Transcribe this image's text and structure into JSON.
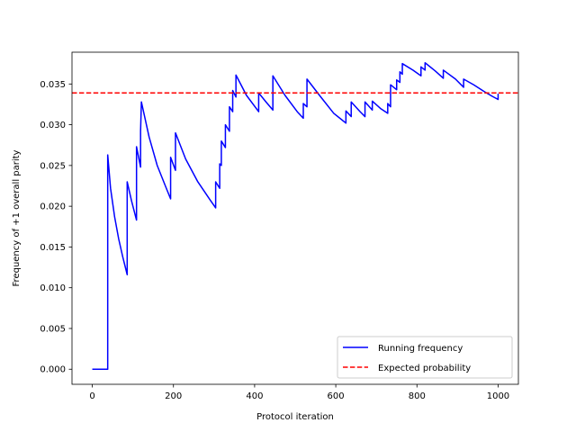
{
  "chart_data": {
    "type": "line",
    "title": "",
    "xlabel": "Protocol iteration",
    "ylabel": "Frequency of +1 overall parity",
    "xlim": [
      -50,
      1050
    ],
    "ylim": [
      -0.00185,
      0.0389
    ],
    "xticks": [
      0,
      200,
      400,
      600,
      800,
      1000
    ],
    "yticks": [
      0.0,
      0.005,
      0.01,
      0.015,
      0.02,
      0.025,
      0.03,
      0.035
    ],
    "ytick_labels": [
      "0.000",
      "0.005",
      "0.010",
      "0.015",
      "0.020",
      "0.025",
      "0.030",
      "0.035"
    ],
    "xtick_labels": [
      "0",
      "200",
      "400",
      "600",
      "800",
      "1000"
    ],
    "grid": false,
    "legend_position": "lower-right",
    "series": [
      {
        "name": "Running frequency",
        "color": "#0000ff",
        "style": "solid",
        "points": [
          [
            0,
            0.0
          ],
          [
            38,
            0.0
          ],
          [
            38,
            0.0263
          ],
          [
            45,
            0.0222
          ],
          [
            55,
            0.0187
          ],
          [
            65,
            0.016
          ],
          [
            75,
            0.0138
          ],
          [
            86,
            0.0116
          ],
          [
            86,
            0.023
          ],
          [
            97,
            0.0206
          ],
          [
            109,
            0.0183
          ],
          [
            109,
            0.0273
          ],
          [
            119,
            0.0248
          ],
          [
            119,
            0.0292
          ],
          [
            121,
            0.0328
          ],
          [
            140,
            0.0285
          ],
          [
            160,
            0.025
          ],
          [
            180,
            0.0225
          ],
          [
            193,
            0.0209
          ],
          [
            193,
            0.026
          ],
          [
            205,
            0.0244
          ],
          [
            205,
            0.029
          ],
          [
            230,
            0.0258
          ],
          [
            260,
            0.023
          ],
          [
            290,
            0.0208
          ],
          [
            304,
            0.0198
          ],
          [
            304,
            0.023
          ],
          [
            314,
            0.0222
          ],
          [
            314,
            0.0252
          ],
          [
            318,
            0.025
          ],
          [
            318,
            0.028
          ],
          [
            328,
            0.0272
          ],
          [
            328,
            0.03
          ],
          [
            338,
            0.0292
          ],
          [
            338,
            0.0322
          ],
          [
            346,
            0.0316
          ],
          [
            346,
            0.0342
          ],
          [
            354,
            0.0334
          ],
          [
            354,
            0.0361
          ],
          [
            380,
            0.0336
          ],
          [
            410,
            0.0316
          ],
          [
            410,
            0.0339
          ],
          [
            428,
            0.0328
          ],
          [
            445,
            0.0318
          ],
          [
            445,
            0.036
          ],
          [
            475,
            0.0336
          ],
          [
            505,
            0.0316
          ],
          [
            520,
            0.0308
          ],
          [
            520,
            0.0326
          ],
          [
            529,
            0.0322
          ],
          [
            529,
            0.0356
          ],
          [
            560,
            0.0336
          ],
          [
            595,
            0.0314
          ],
          [
            625,
            0.0302
          ],
          [
            625,
            0.0317
          ],
          [
            638,
            0.031
          ],
          [
            638,
            0.0328
          ],
          [
            660,
            0.0316
          ],
          [
            672,
            0.031
          ],
          [
            672,
            0.0328
          ],
          [
            690,
            0.0318
          ],
          [
            690,
            0.0329
          ],
          [
            710,
            0.032
          ],
          [
            728,
            0.0314
          ],
          [
            728,
            0.0326
          ],
          [
            735,
            0.0322
          ],
          [
            735,
            0.0349
          ],
          [
            750,
            0.0343
          ],
          [
            750,
            0.0355
          ],
          [
            758,
            0.0352
          ],
          [
            758,
            0.0365
          ],
          [
            764,
            0.0362
          ],
          [
            764,
            0.0375
          ],
          [
            790,
            0.0367
          ],
          [
            810,
            0.036
          ],
          [
            810,
            0.0371
          ],
          [
            820,
            0.0367
          ],
          [
            820,
            0.0376
          ],
          [
            845,
            0.0366
          ],
          [
            865,
            0.0357
          ],
          [
            865,
            0.0367
          ],
          [
            895,
            0.0356
          ],
          [
            915,
            0.0346
          ],
          [
            915,
            0.0356
          ],
          [
            940,
            0.0349
          ],
          [
            965,
            0.0341
          ],
          [
            985,
            0.0335
          ],
          [
            1000,
            0.0331
          ],
          [
            1000,
            0.0338
          ]
        ]
      },
      {
        "name": "Expected probability",
        "color": "#ff0000",
        "style": "dashed",
        "points": [
          [
            -50,
            0.0339
          ],
          [
            1050,
            0.0339
          ]
        ]
      }
    ]
  }
}
